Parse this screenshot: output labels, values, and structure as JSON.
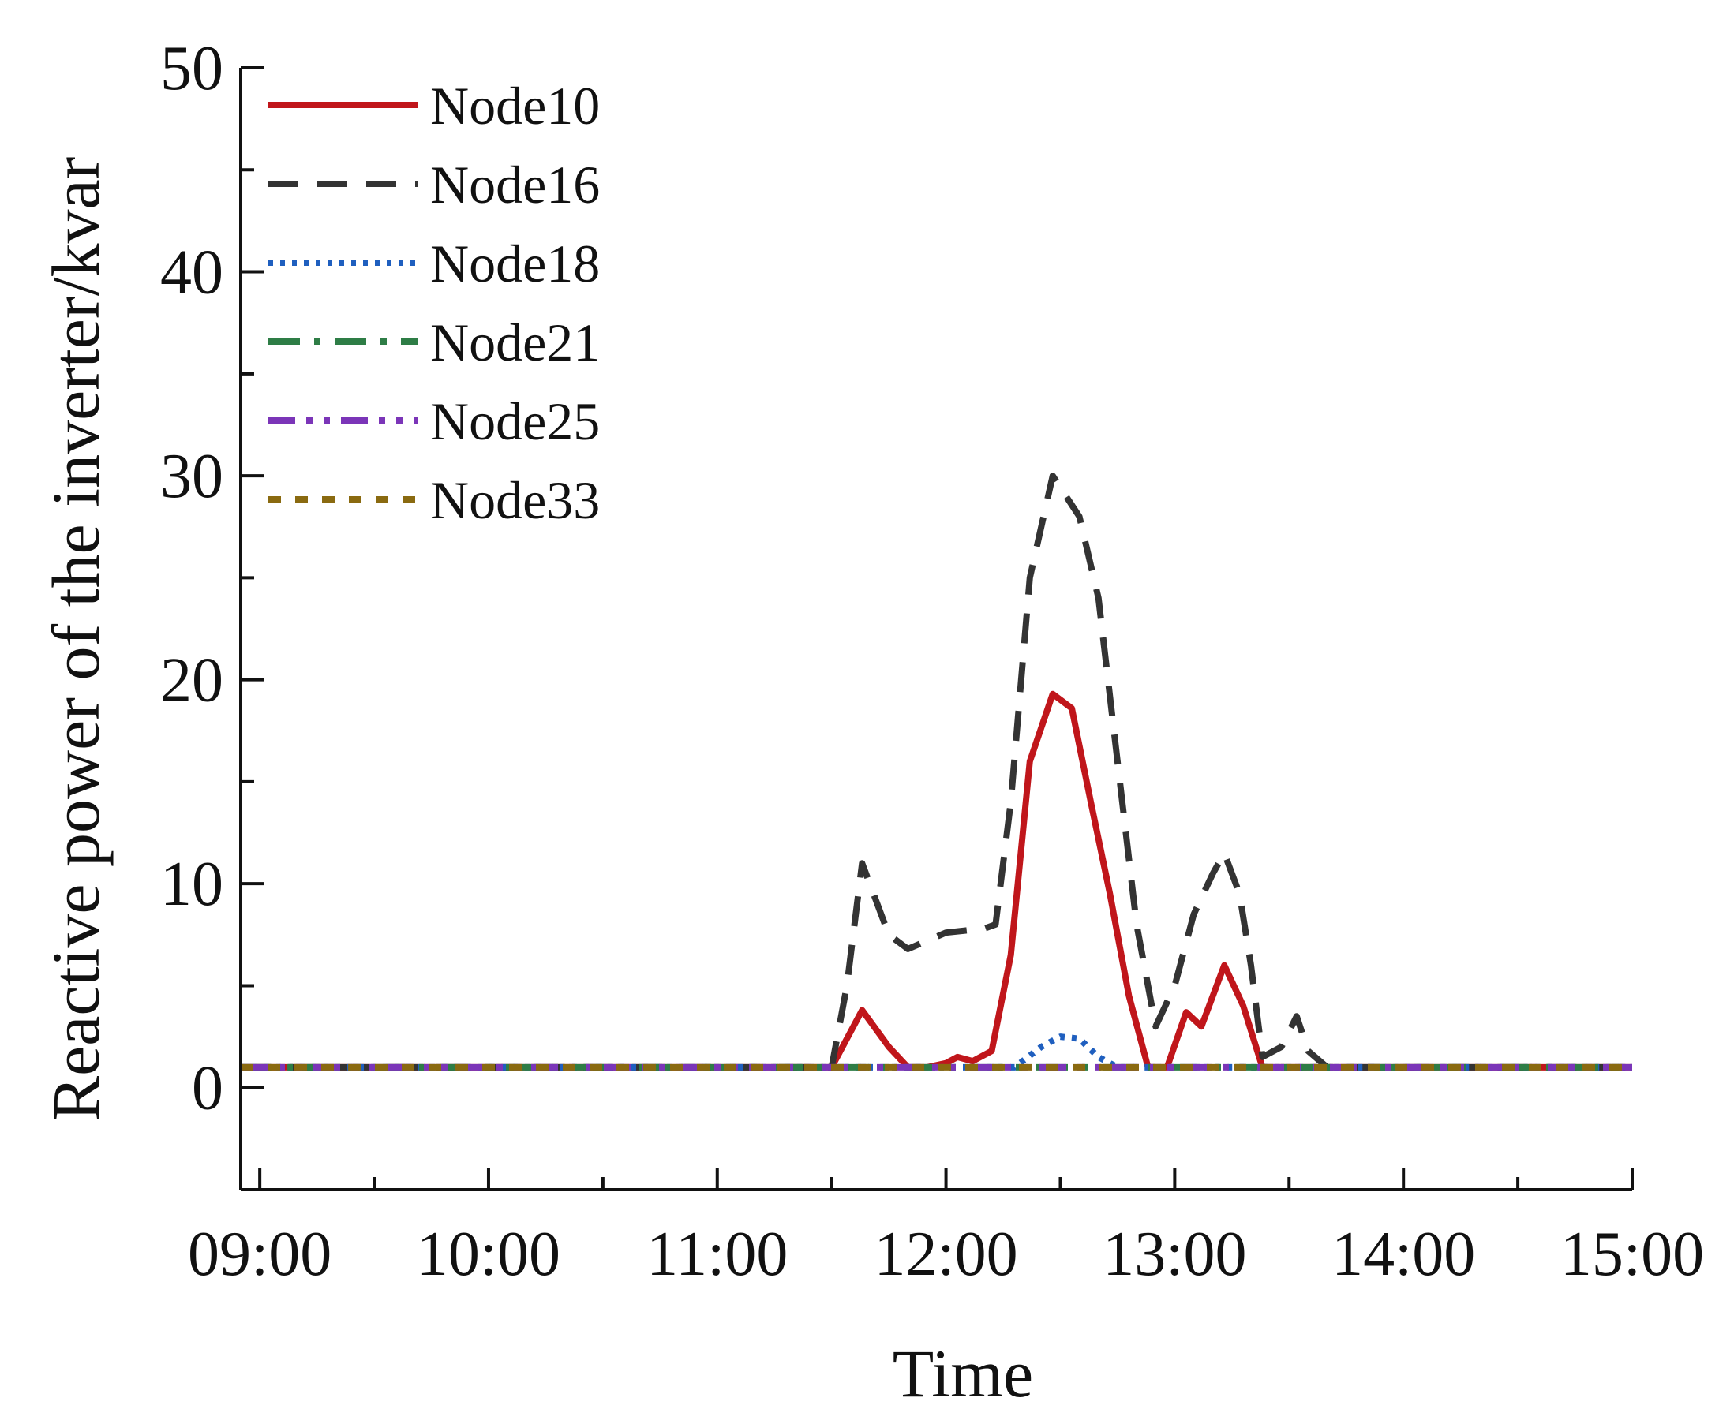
{
  "chart_data": {
    "type": "line",
    "xlabel": "Time",
    "ylabel": "Reactive power of the inverter/kvar",
    "xlim": [
      "08:55",
      "15:00"
    ],
    "ylim": [
      -5,
      50
    ],
    "y_ticks": [
      0,
      10,
      20,
      30,
      40,
      50
    ],
    "x_ticks": [
      "09:00",
      "10:00",
      "11:00",
      "12:00",
      "13:00",
      "14:00",
      "15:00"
    ],
    "legend_position": "top-left",
    "grid": false,
    "series": [
      {
        "name": "Node10",
        "color": "#c0161b",
        "dash": "solid",
        "points": [
          [
            "08:55",
            1.0
          ],
          [
            "09:30",
            1.0
          ],
          [
            "10:00",
            1.0
          ],
          [
            "10:30",
            1.0
          ],
          [
            "11:00",
            1.0
          ],
          [
            "11:30",
            1.0
          ],
          [
            "11:38",
            3.8
          ],
          [
            "11:45",
            2.0
          ],
          [
            "11:50",
            1.0
          ],
          [
            "11:55",
            1.0
          ],
          [
            "12:00",
            1.2
          ],
          [
            "12:03",
            1.5
          ],
          [
            "12:07",
            1.3
          ],
          [
            "12:12",
            1.8
          ],
          [
            "12:17",
            6.5
          ],
          [
            "12:22",
            16.0
          ],
          [
            "12:28",
            19.3
          ],
          [
            "12:33",
            18.6
          ],
          [
            "12:38",
            14.0
          ],
          [
            "12:43",
            9.5
          ],
          [
            "12:48",
            4.5
          ],
          [
            "12:53",
            1.0
          ],
          [
            "12:58",
            1.0
          ],
          [
            "13:03",
            3.7
          ],
          [
            "13:07",
            3.0
          ],
          [
            "13:13",
            6.0
          ],
          [
            "13:18",
            4.0
          ],
          [
            "13:23",
            1.0
          ],
          [
            "13:30",
            1.0
          ],
          [
            "14:00",
            1.0
          ],
          [
            "14:30",
            1.0
          ],
          [
            "15:00",
            1.0
          ]
        ]
      },
      {
        "name": "Node16",
        "color": "#333333",
        "dash": "dashed",
        "points": [
          [
            "08:55",
            1.0
          ],
          [
            "09:30",
            1.0
          ],
          [
            "10:00",
            1.0
          ],
          [
            "10:30",
            1.0
          ],
          [
            "11:00",
            1.0
          ],
          [
            "11:30",
            1.0
          ],
          [
            "11:34",
            5.0
          ],
          [
            "11:38",
            11.0
          ],
          [
            "11:45",
            7.5
          ],
          [
            "11:50",
            6.8
          ],
          [
            "11:55",
            7.2
          ],
          [
            "12:00",
            7.6
          ],
          [
            "12:05",
            7.7
          ],
          [
            "12:10",
            7.8
          ],
          [
            "12:13",
            8.0
          ],
          [
            "12:17",
            14.0
          ],
          [
            "12:22",
            25.0
          ],
          [
            "12:28",
            30.0
          ],
          [
            "12:35",
            28.0
          ],
          [
            "12:40",
            24.0
          ],
          [
            "12:45",
            16.0
          ],
          [
            "12:50",
            8.0
          ],
          [
            "12:55",
            3.0
          ],
          [
            "13:00",
            5.0
          ],
          [
            "13:05",
            8.5
          ],
          [
            "13:10",
            10.5
          ],
          [
            "13:13",
            11.5
          ],
          [
            "13:17",
            9.5
          ],
          [
            "13:20",
            6.0
          ],
          [
            "13:23",
            1.5
          ],
          [
            "13:28",
            2.0
          ],
          [
            "13:32",
            3.5
          ],
          [
            "13:35",
            1.8
          ],
          [
            "13:40",
            1.0
          ],
          [
            "14:00",
            1.0
          ],
          [
            "14:30",
            1.0
          ],
          [
            "15:00",
            1.0
          ]
        ]
      },
      {
        "name": "Node18",
        "color": "#1f5fbf",
        "dash": "dotted",
        "points": [
          [
            "08:55",
            1.0
          ],
          [
            "10:00",
            1.0
          ],
          [
            "11:00",
            1.0
          ],
          [
            "12:00",
            1.0
          ],
          [
            "12:18",
            1.0
          ],
          [
            "12:25",
            2.0
          ],
          [
            "12:30",
            2.5
          ],
          [
            "12:35",
            2.4
          ],
          [
            "12:40",
            1.5
          ],
          [
            "12:45",
            1.0
          ],
          [
            "13:00",
            1.0
          ],
          [
            "14:00",
            1.0
          ],
          [
            "15:00",
            1.0
          ]
        ]
      },
      {
        "name": "Node21",
        "color": "#2e7d46",
        "dash": "dashdot",
        "points": [
          [
            "08:55",
            1.0
          ],
          [
            "10:00",
            1.0
          ],
          [
            "11:00",
            1.0
          ],
          [
            "12:00",
            1.0
          ],
          [
            "13:00",
            1.0
          ],
          [
            "14:00",
            1.0
          ],
          [
            "15:00",
            1.0
          ]
        ]
      },
      {
        "name": "Node25",
        "color": "#7b35b8",
        "dash": "dashdotdot",
        "points": [
          [
            "08:55",
            1.0
          ],
          [
            "10:00",
            1.0
          ],
          [
            "11:00",
            1.0
          ],
          [
            "12:00",
            1.0
          ],
          [
            "13:00",
            1.0
          ],
          [
            "14:00",
            1.0
          ],
          [
            "15:00",
            1.0
          ]
        ]
      },
      {
        "name": "Node33",
        "color": "#8a6a10",
        "dash": "shortdash",
        "points": [
          [
            "08:55",
            1.0
          ],
          [
            "10:00",
            1.0
          ],
          [
            "11:00",
            1.0
          ],
          [
            "12:00",
            1.0
          ],
          [
            "13:00",
            1.0
          ],
          [
            "14:00",
            1.0
          ],
          [
            "15:00",
            1.0
          ]
        ]
      }
    ]
  }
}
